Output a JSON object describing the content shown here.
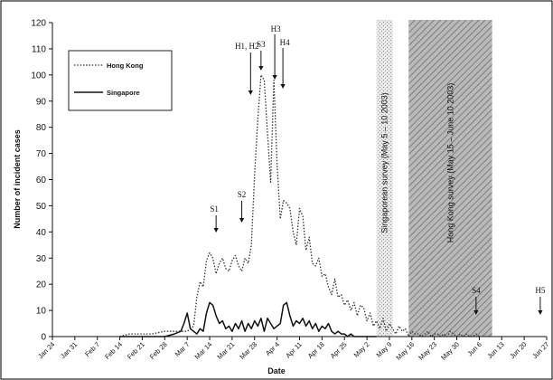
{
  "chart_data": {
    "type": "line",
    "xlabel": "Date",
    "ylabel": "Number of incident cases",
    "ylim": [
      0,
      120
    ],
    "yticks": [
      0,
      10,
      20,
      30,
      40,
      50,
      60,
      70,
      80,
      90,
      100,
      110,
      120
    ],
    "x_tick_labels": [
      "Jan 24",
      "Jan 31",
      "Feb 7",
      "Feb 14",
      "Feb 21",
      "Feb 28",
      "Mar 7",
      "Mar 14",
      "Mar 21",
      "Mar 28",
      "Apr 4",
      "Apr 11",
      "Apr 18",
      "Apr 25",
      "May 2",
      "May 9",
      "May 16",
      "May 23",
      "May 30",
      "Jun 6",
      "Jun 13",
      "Jun 20",
      "Jun 27"
    ],
    "x_start": "Jan 24",
    "x_end": "Jun 27",
    "legend_position": "top-left",
    "series": [
      {
        "name": "Hong Kong",
        "style": "dotted",
        "color": "#333333",
        "points": [
          [
            "Feb 14",
            0
          ],
          [
            "Feb 17",
            1
          ],
          [
            "Feb 21",
            1
          ],
          [
            "Feb 24",
            1
          ],
          [
            "Feb 28",
            2
          ],
          [
            "Mar 3",
            2
          ],
          [
            "Mar 7",
            2
          ],
          [
            "Mar 9",
            4
          ],
          [
            "Mar 10",
            15
          ],
          [
            "Mar 11",
            21
          ],
          [
            "Mar 12",
            19
          ],
          [
            "Mar 13",
            29
          ],
          [
            "Mar 14",
            32
          ],
          [
            "Mar 15",
            30
          ],
          [
            "Mar 16",
            24
          ],
          [
            "Mar 17",
            28
          ],
          [
            "Mar 18",
            30
          ],
          [
            "Mar 19",
            26
          ],
          [
            "Mar 20",
            25
          ],
          [
            "Mar 21",
            29
          ],
          [
            "Mar 22",
            31
          ],
          [
            "Mar 23",
            27
          ],
          [
            "Mar 24",
            25
          ],
          [
            "Mar 25",
            30
          ],
          [
            "Mar 26",
            28
          ],
          [
            "Mar 27",
            35
          ],
          [
            "Mar 28",
            62
          ],
          [
            "Mar 29",
            83
          ],
          [
            "Mar 30",
            100
          ],
          [
            "Mar 31",
            98
          ],
          [
            "Apr 1",
            78
          ],
          [
            "Apr 2",
            59
          ],
          [
            "Apr 3",
            98
          ],
          [
            "Apr 4",
            66
          ],
          [
            "Apr 5",
            45
          ],
          [
            "Apr 6",
            52
          ],
          [
            "Apr 7",
            51
          ],
          [
            "Apr 8",
            49
          ],
          [
            "Apr 9",
            40
          ],
          [
            "Apr 10",
            35
          ],
          [
            "Apr 11",
            49
          ],
          [
            "Apr 12",
            46
          ],
          [
            "Apr 13",
            33
          ],
          [
            "Apr 14",
            38
          ],
          [
            "Apr 15",
            28
          ],
          [
            "Apr 16",
            27
          ],
          [
            "Apr 17",
            30
          ],
          [
            "Apr 18",
            23
          ],
          [
            "Apr 19",
            24
          ],
          [
            "Apr 20",
            19
          ],
          [
            "Apr 21",
            16
          ],
          [
            "Apr 22",
            22
          ],
          [
            "Apr 23",
            15
          ],
          [
            "Apr 24",
            16
          ],
          [
            "Apr 25",
            12
          ],
          [
            "Apr 26",
            14
          ],
          [
            "Apr 27",
            10
          ],
          [
            "Apr 28",
            13
          ],
          [
            "Apr 29",
            8
          ],
          [
            "Apr 30",
            12
          ],
          [
            "May 1",
            11
          ],
          [
            "May 2",
            6
          ],
          [
            "May 3",
            9
          ],
          [
            "May 4",
            4
          ],
          [
            "May 5",
            6
          ],
          [
            "May 6",
            3
          ],
          [
            "May 7",
            7
          ],
          [
            "May 8",
            2
          ],
          [
            "May 9",
            5
          ],
          [
            "May 10",
            3
          ],
          [
            "May 11",
            1
          ],
          [
            "May 12",
            4
          ],
          [
            "May 13",
            2
          ],
          [
            "May 14",
            3
          ],
          [
            "May 15",
            0
          ],
          [
            "May 16",
            2
          ],
          [
            "May 17",
            1
          ],
          [
            "May 18",
            1
          ],
          [
            "May 19",
            0
          ],
          [
            "May 20",
            1
          ],
          [
            "May 21",
            2
          ],
          [
            "May 22",
            0
          ],
          [
            "May 23",
            1
          ],
          [
            "May 24",
            1
          ],
          [
            "May 25",
            0
          ],
          [
            "May 26",
            1
          ],
          [
            "May 27",
            0
          ],
          [
            "May 28",
            2
          ],
          [
            "May 29",
            1
          ],
          [
            "May 30",
            0
          ],
          [
            "May 31",
            1
          ],
          [
            "Jun 1",
            0
          ],
          [
            "Jun 2",
            1
          ],
          [
            "Jun 3",
            0
          ],
          [
            "Jun 4",
            0
          ],
          [
            "Jun 5",
            1
          ],
          [
            "Jun 6",
            0
          ]
        ]
      },
      {
        "name": "Singapore",
        "style": "solid",
        "color": "#111111",
        "points": [
          [
            "Feb 14",
            0
          ],
          [
            "Feb 21",
            0
          ],
          [
            "Feb 28",
            0
          ],
          [
            "Mar 3",
            1
          ],
          [
            "Mar 5",
            2
          ],
          [
            "Mar 6",
            5
          ],
          [
            "Mar 7",
            9
          ],
          [
            "Mar 8",
            3
          ],
          [
            "Mar 9",
            2
          ],
          [
            "Mar 10",
            1
          ],
          [
            "Mar 11",
            3
          ],
          [
            "Mar 12",
            2
          ],
          [
            "Mar 13",
            9
          ],
          [
            "Mar 14",
            13
          ],
          [
            "Mar 15",
            12
          ],
          [
            "Mar 16",
            8
          ],
          [
            "Mar 17",
            5
          ],
          [
            "Mar 18",
            6
          ],
          [
            "Mar 19",
            3
          ],
          [
            "Mar 20",
            4
          ],
          [
            "Mar 21",
            2
          ],
          [
            "Mar 22",
            5
          ],
          [
            "Mar 23",
            3
          ],
          [
            "Mar 24",
            6
          ],
          [
            "Mar 25",
            2
          ],
          [
            "Mar 26",
            5
          ],
          [
            "Mar 27",
            3
          ],
          [
            "Mar 28",
            6
          ],
          [
            "Mar 29",
            4
          ],
          [
            "Mar 30",
            7
          ],
          [
            "Mar 31",
            2
          ],
          [
            "Apr 1",
            7
          ],
          [
            "Apr 2",
            5
          ],
          [
            "Apr 3",
            3
          ],
          [
            "Apr 4",
            4
          ],
          [
            "Apr 5",
            5
          ],
          [
            "Apr 6",
            12
          ],
          [
            "Apr 7",
            13
          ],
          [
            "Apr 8",
            8
          ],
          [
            "Apr 9",
            4
          ],
          [
            "Apr 10",
            6
          ],
          [
            "Apr 11",
            5
          ],
          [
            "Apr 12",
            7
          ],
          [
            "Apr 13",
            4
          ],
          [
            "Apr 14",
            6
          ],
          [
            "Apr 15",
            3
          ],
          [
            "Apr 16",
            5
          ],
          [
            "Apr 17",
            2
          ],
          [
            "Apr 18",
            4
          ],
          [
            "Apr 19",
            3
          ],
          [
            "Apr 20",
            5
          ],
          [
            "Apr 21",
            2
          ],
          [
            "Apr 22",
            1
          ],
          [
            "Apr 23",
            2
          ],
          [
            "Apr 24",
            1
          ],
          [
            "Apr 25",
            1
          ],
          [
            "Apr 26",
            0
          ],
          [
            "Apr 27",
            1
          ],
          [
            "Apr 28",
            0
          ],
          [
            "Apr 29",
            0
          ],
          [
            "May 5",
            0
          ]
        ]
      }
    ],
    "shaded_regions": [
      {
        "label": "Singaporean survey (May 5 – 10 2003)",
        "start": "May 5",
        "end": "May 10",
        "pattern": "stipple"
      },
      {
        "label": "Hong Kong survey (May 15 – June 10 2003)",
        "start": "May 15",
        "end": "Jun 10",
        "pattern": "diagonal-hatch"
      }
    ],
    "annotations": [
      {
        "text": "S1",
        "x": "Mar 16",
        "y": 32
      },
      {
        "text": "S2",
        "x": "Mar 24",
        "y": 28
      },
      {
        "text": "H1, H2",
        "x": "Mar 29",
        "y": 100
      },
      {
        "text": "S3",
        "x": "Mar 30",
        "y": 98
      },
      {
        "text": "H3",
        "x": "Apr 3",
        "y": 100
      },
      {
        "text": "H4",
        "x": "Apr 3",
        "y": 98
      },
      {
        "text": "S4",
        "x": "Jun 5",
        "y": 0
      },
      {
        "text": "H5",
        "x": "Jun 25",
        "y": 0
      }
    ]
  }
}
